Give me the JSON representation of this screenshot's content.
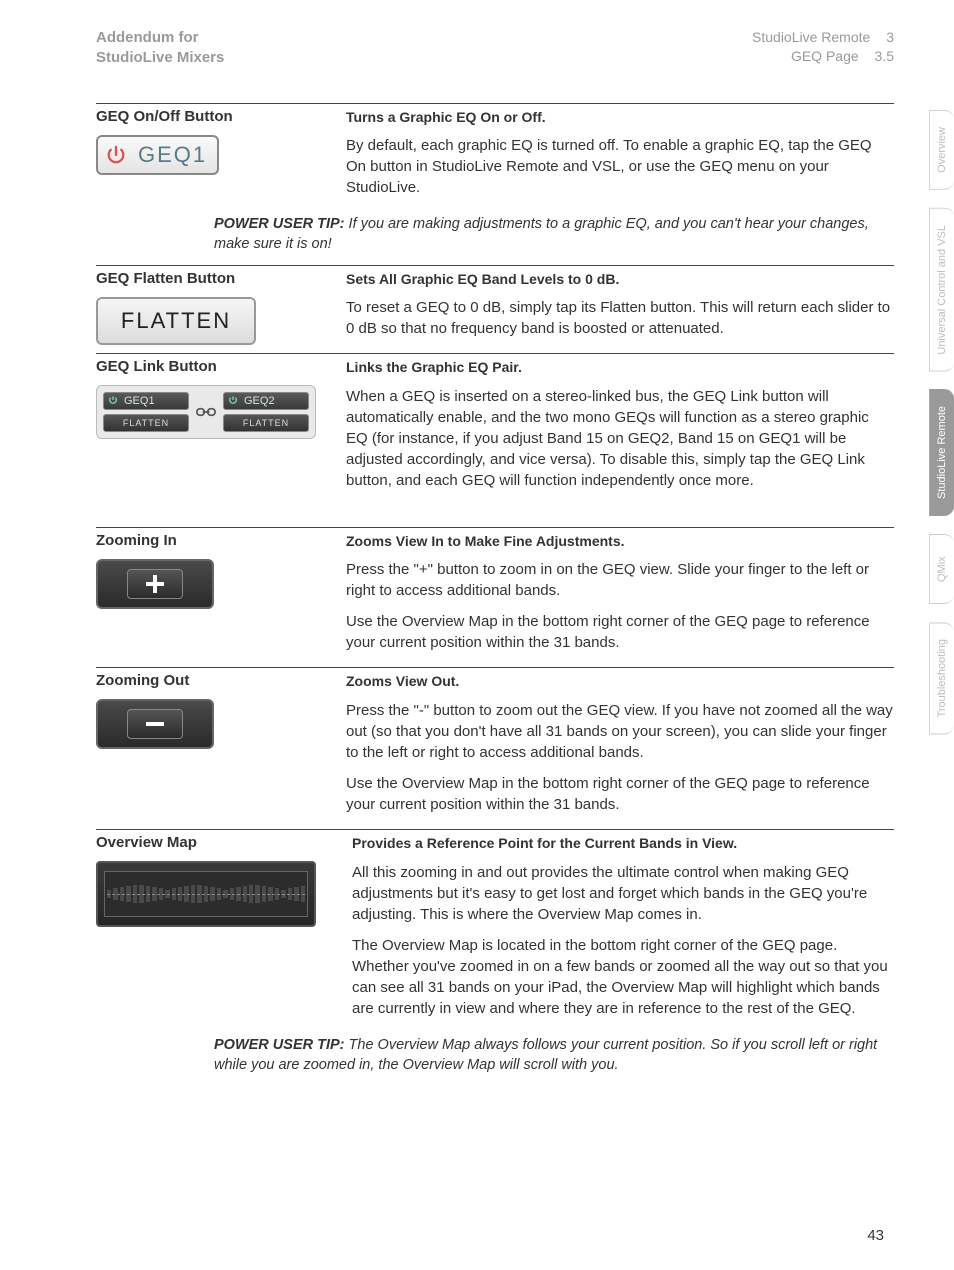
{
  "header": {
    "left_line1": "Addendum for",
    "left_line2": "StudioLive Mixers",
    "right_line1_text": "StudioLive Remote",
    "right_line1_num": "3",
    "right_line2_text": "GEQ Page",
    "right_line2_num": "3.5"
  },
  "side_tabs": {
    "items": [
      {
        "label": "Overview",
        "active": false
      },
      {
        "label": "Universal Control and VSL",
        "active": false
      },
      {
        "label": "StudioLive Remote",
        "active": true
      },
      {
        "label": "QMix",
        "active": false
      },
      {
        "label": "Troubleshooting",
        "active": false
      }
    ]
  },
  "sections": {
    "geq_on_off": {
      "title": "GEQ On/Off Button",
      "subtitle": "Turns a Graphic EQ On or Off.",
      "body1": "By default, each graphic EQ is turned off. To enable a graphic EQ, tap the GEQ On button in StudioLive Remote and VSL, or use the GEQ menu on your StudioLive.",
      "button_label": "GEQ1",
      "icon_name": "power-icon",
      "icon_color": "#d9534f"
    },
    "tip1": {
      "label": "POWER USER TIP:",
      "text": "If you are making adjustments to a graphic EQ, and you can't hear your changes, make sure it is on!"
    },
    "flatten": {
      "title": "GEQ Flatten Button",
      "subtitle": "Sets All Graphic EQ Band Levels to 0 dB.",
      "body1": "To reset a GEQ to 0 dB, simply tap its Flatten button. This will return each slider to 0 dB so that no frequency band is boosted or attenuated.",
      "button_label": "FLATTEN"
    },
    "link": {
      "title": "GEQ Link Button",
      "subtitle": "Links the Graphic EQ Pair.",
      "body1": "When a GEQ is inserted on a stereo-linked bus, the GEQ Link button will automatically enable, and the two mono GEQs will function as a stereo graphic EQ (for instance, if you adjust Band 15 on GEQ2, Band 15 on GEQ1 will be adjusted accordingly, and vice versa). To disable this, simply tap the GEQ Link button, and each GEQ will function independently once more.",
      "geq1_label": "GEQ1",
      "geq2_label": "GEQ2",
      "flatten_label": "FLATTEN",
      "link_icon_name": "link-icon"
    },
    "zoom_in": {
      "title": "Zooming In",
      "subtitle": "Zooms View In to Make Fine Adjustments.",
      "body1": "Press the \"+\" button to zoom in on the GEQ view. Slide your finger to the left or right to access additional bands.",
      "body2": "Use the Overview Map in the bottom right corner of the GEQ page to reference your current position within the 31 bands.",
      "icon_name": "plus-icon"
    },
    "zoom_out": {
      "title": "Zooming Out",
      "subtitle": "Zooms View Out.",
      "body1": "Press the \"-\" button to zoom out the GEQ view. If you have not zoomed all the way out (so that you don't have all 31 bands on your screen), you can slide your finger to the left or right to access additional bands.",
      "body2": "Use the Overview Map in the bottom right corner of the GEQ page to reference your current position within the 31 bands.",
      "icon_name": "minus-icon"
    },
    "overview_map": {
      "title": "Overview Map",
      "subtitle": "Provides a Reference Point for the Current Bands in View.",
      "body1": "All this zooming in and out provides the ultimate control when making GEQ adjustments but it's easy to get lost and forget which bands in the GEQ you're adjusting. This is where the Overview Map comes in.",
      "body2": "The Overview Map is located in the bottom right corner of the GEQ page. Whether you've zoomed in on a few bands or zoomed all the way out so that you can see all 31 bands on your iPad, the Overview Map will highlight which bands are currently in view and where they are in reference to the rest of the GEQ.",
      "bar_count": 31,
      "bar_color": "#4a4a4a",
      "bg_color": "#2c2c2c"
    },
    "tip2": {
      "label": "POWER USER TIP:",
      "text": "The Overview Map always follows your current position. So if you scroll left or right while you are zoomed in, the Overview Map will scroll with you."
    }
  },
  "page_number": "43",
  "colors": {
    "rule": "#444444",
    "header_grey": "#9a9a9a",
    "tab_active_bg": "#9a9a9a"
  }
}
